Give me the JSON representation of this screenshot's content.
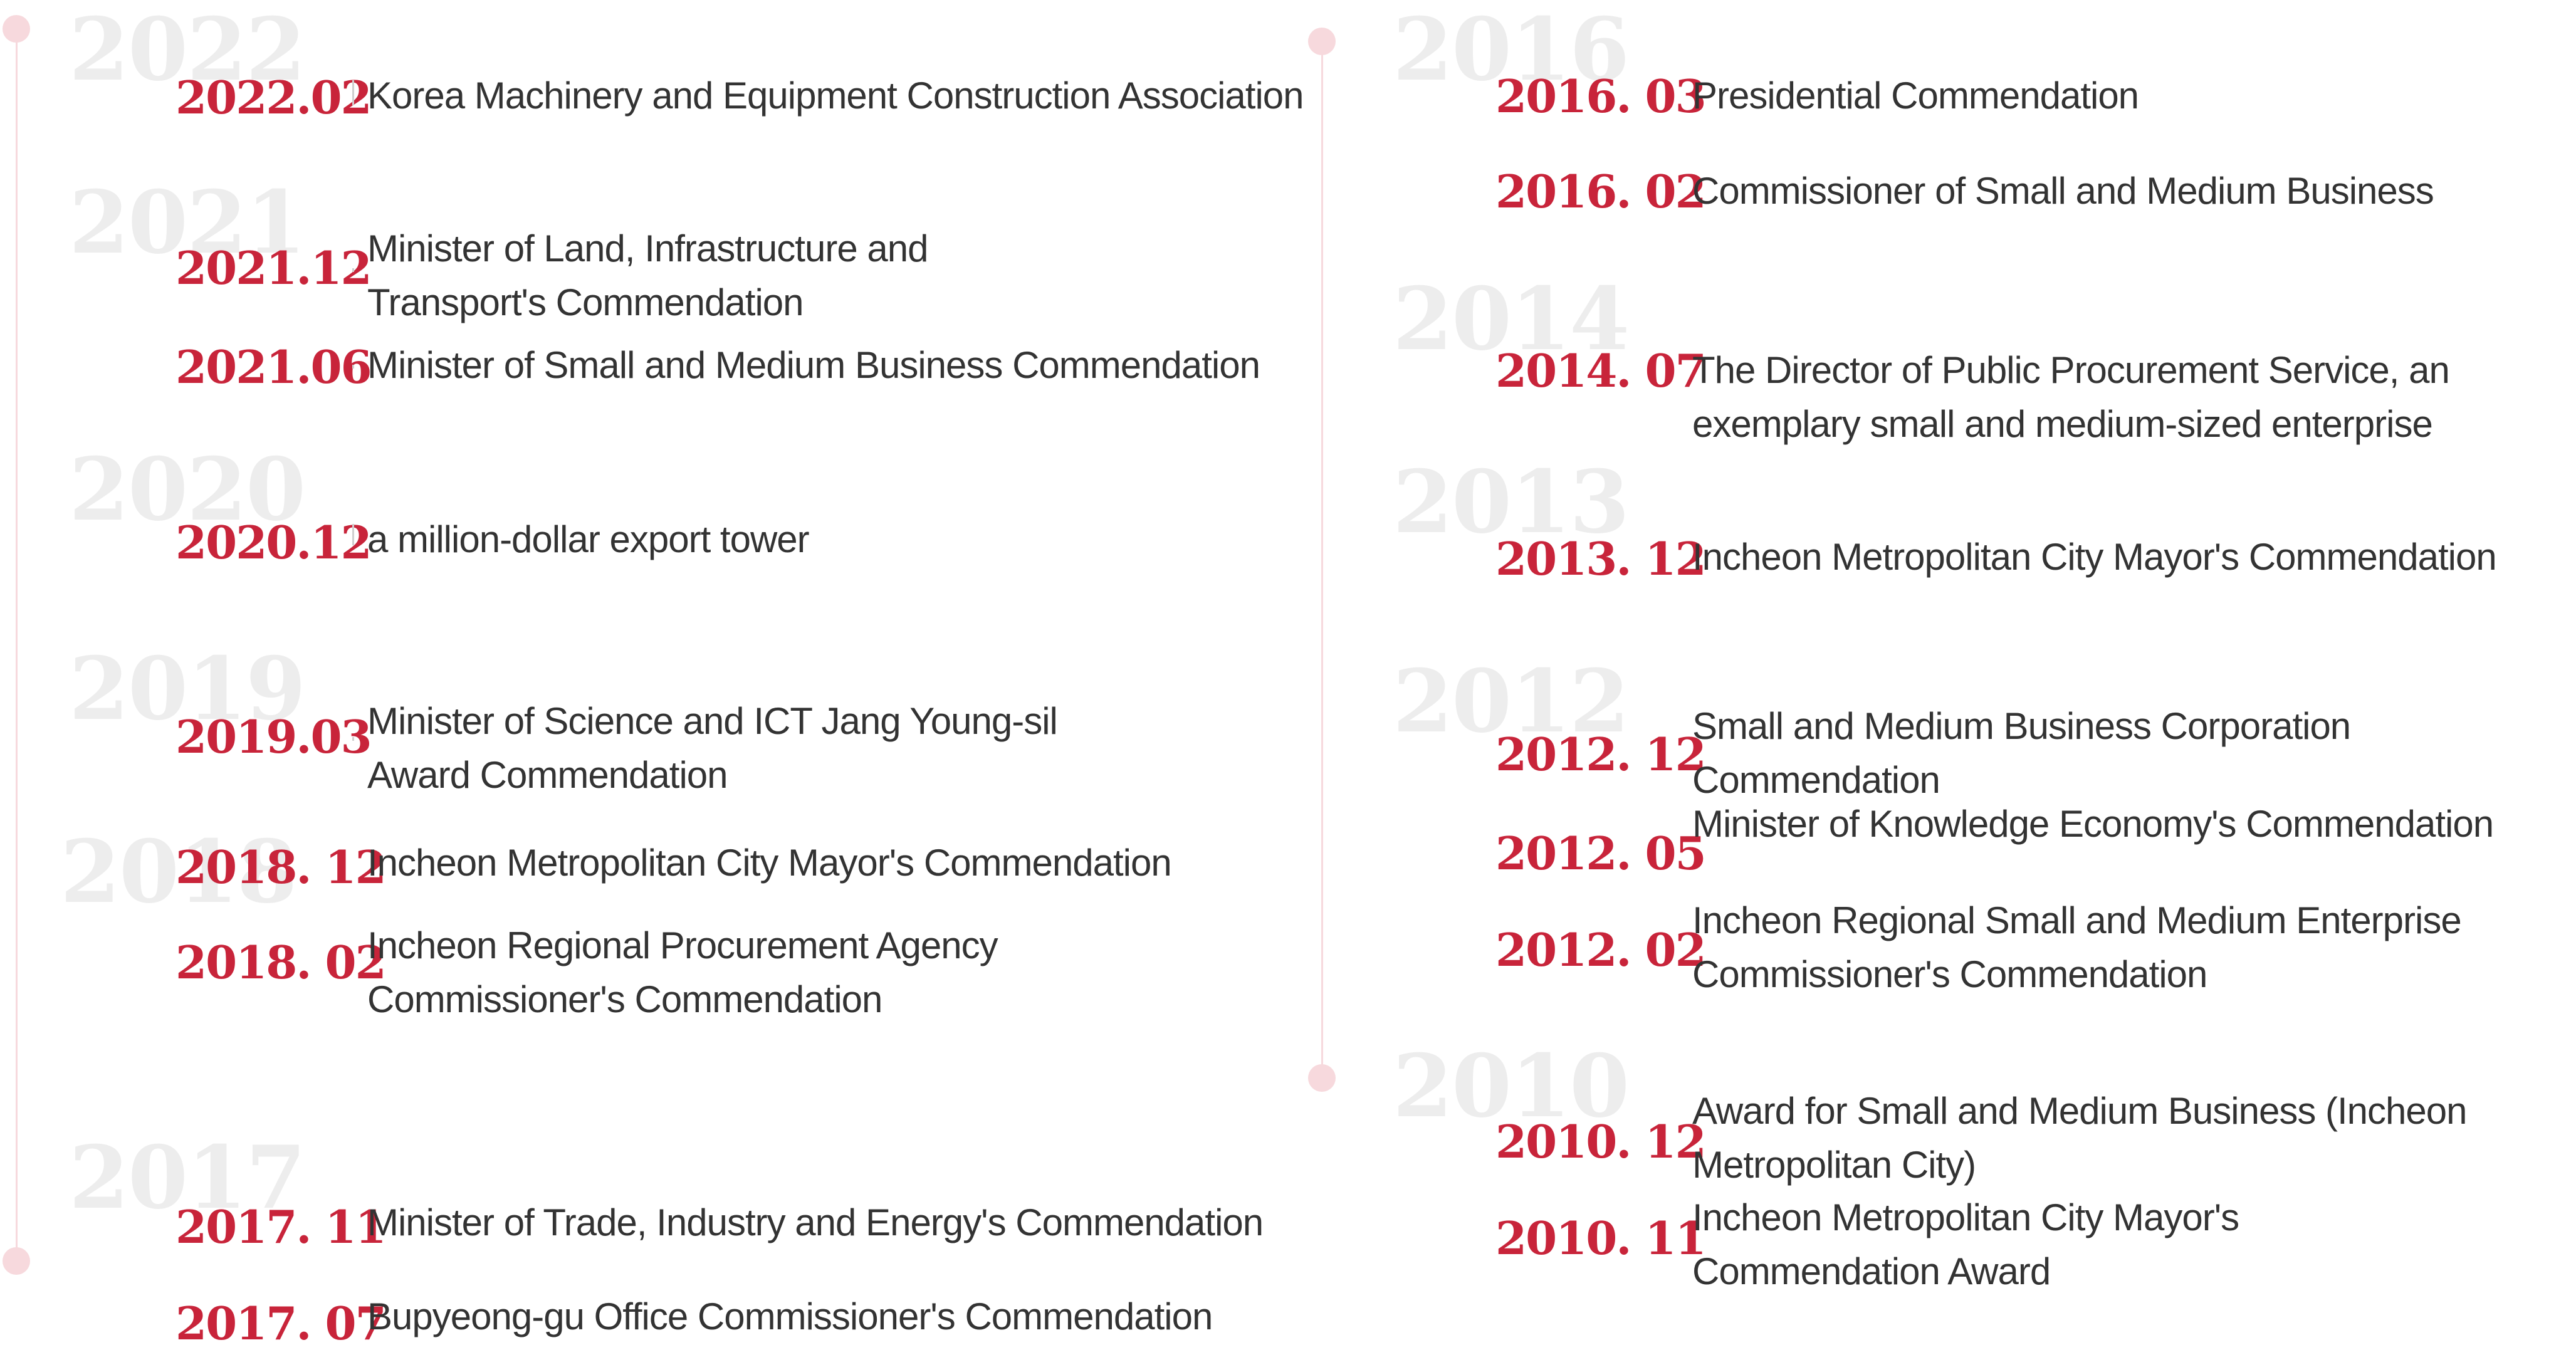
{
  "colors": {
    "accent_red": "#c8243a",
    "text_dark": "#333333",
    "watermark_gray": "#ededed",
    "timeline_pink": "#f7d9dd"
  },
  "left_column": {
    "years": [
      "2022",
      "2021",
      "2020",
      "2019",
      "2018",
      "2017"
    ],
    "awards": [
      {
        "date": "2022.02",
        "lines": [
          "Korea Machinery and Equipment Construction Association"
        ]
      },
      {
        "date": "2021.12",
        "lines": [
          "Minister of Land, Infrastructure and",
          "Transport's Commendation"
        ]
      },
      {
        "date": "2021.06",
        "lines": [
          "Minister of Small and Medium Business Commendation"
        ]
      },
      {
        "date": "2020.12",
        "lines": [
          "a million-dollar export tower"
        ]
      },
      {
        "date": "2019.03",
        "lines": [
          "Minister of Science and ICT Jang Young-sil",
          "Award Commendation"
        ]
      },
      {
        "date": "2018. 12",
        "lines": [
          "Incheon Metropolitan City Mayor's Commendation"
        ]
      },
      {
        "date": "2018. 02",
        "lines": [
          "Incheon Regional Procurement Agency",
          "Commissioner's Commendation"
        ]
      },
      {
        "date": "2017. 11",
        "lines": [
          "Minister of Trade, Industry and Energy's Commendation"
        ]
      },
      {
        "date": "2017. 07",
        "lines": [
          "Bupyeong-gu Office Commissioner's Commendation"
        ]
      }
    ]
  },
  "right_column": {
    "years": [
      "2016",
      "2014",
      "2013",
      "2012",
      "2010"
    ],
    "awards": [
      {
        "date": "2016. 03",
        "lines": [
          "Presidential Commendation"
        ]
      },
      {
        "date": "2016. 02",
        "lines": [
          "Commissioner of Small and Medium Business"
        ]
      },
      {
        "date": "2014. 07",
        "lines": [
          "The Director of Public Procurement Service, an",
          "exemplary small and medium-sized enterprise"
        ]
      },
      {
        "date": "2013. 12",
        "lines": [
          "Incheon Metropolitan City  Mayor's Commendation"
        ]
      },
      {
        "date": "2012. 12",
        "lines": [
          "Small and Medium Business Corporation",
          " Commendation"
        ]
      },
      {
        "date": "2012. 05",
        "lines": [
          "Minister of Knowledge Economy's Commendation"
        ]
      },
      {
        "date": "2012. 02",
        "lines": [
          "Incheon Regional Small and Medium Enterprise",
          "Commissioner's Commendation"
        ]
      },
      {
        "date": "2010. 12",
        "lines": [
          "Award for Small and Medium Business (Incheon",
          "Metropolitan City)"
        ]
      },
      {
        "date": "2010. 11",
        "lines": [
          "Incheon Metropolitan City Mayor's",
          " Commendation Award"
        ]
      }
    ]
  }
}
